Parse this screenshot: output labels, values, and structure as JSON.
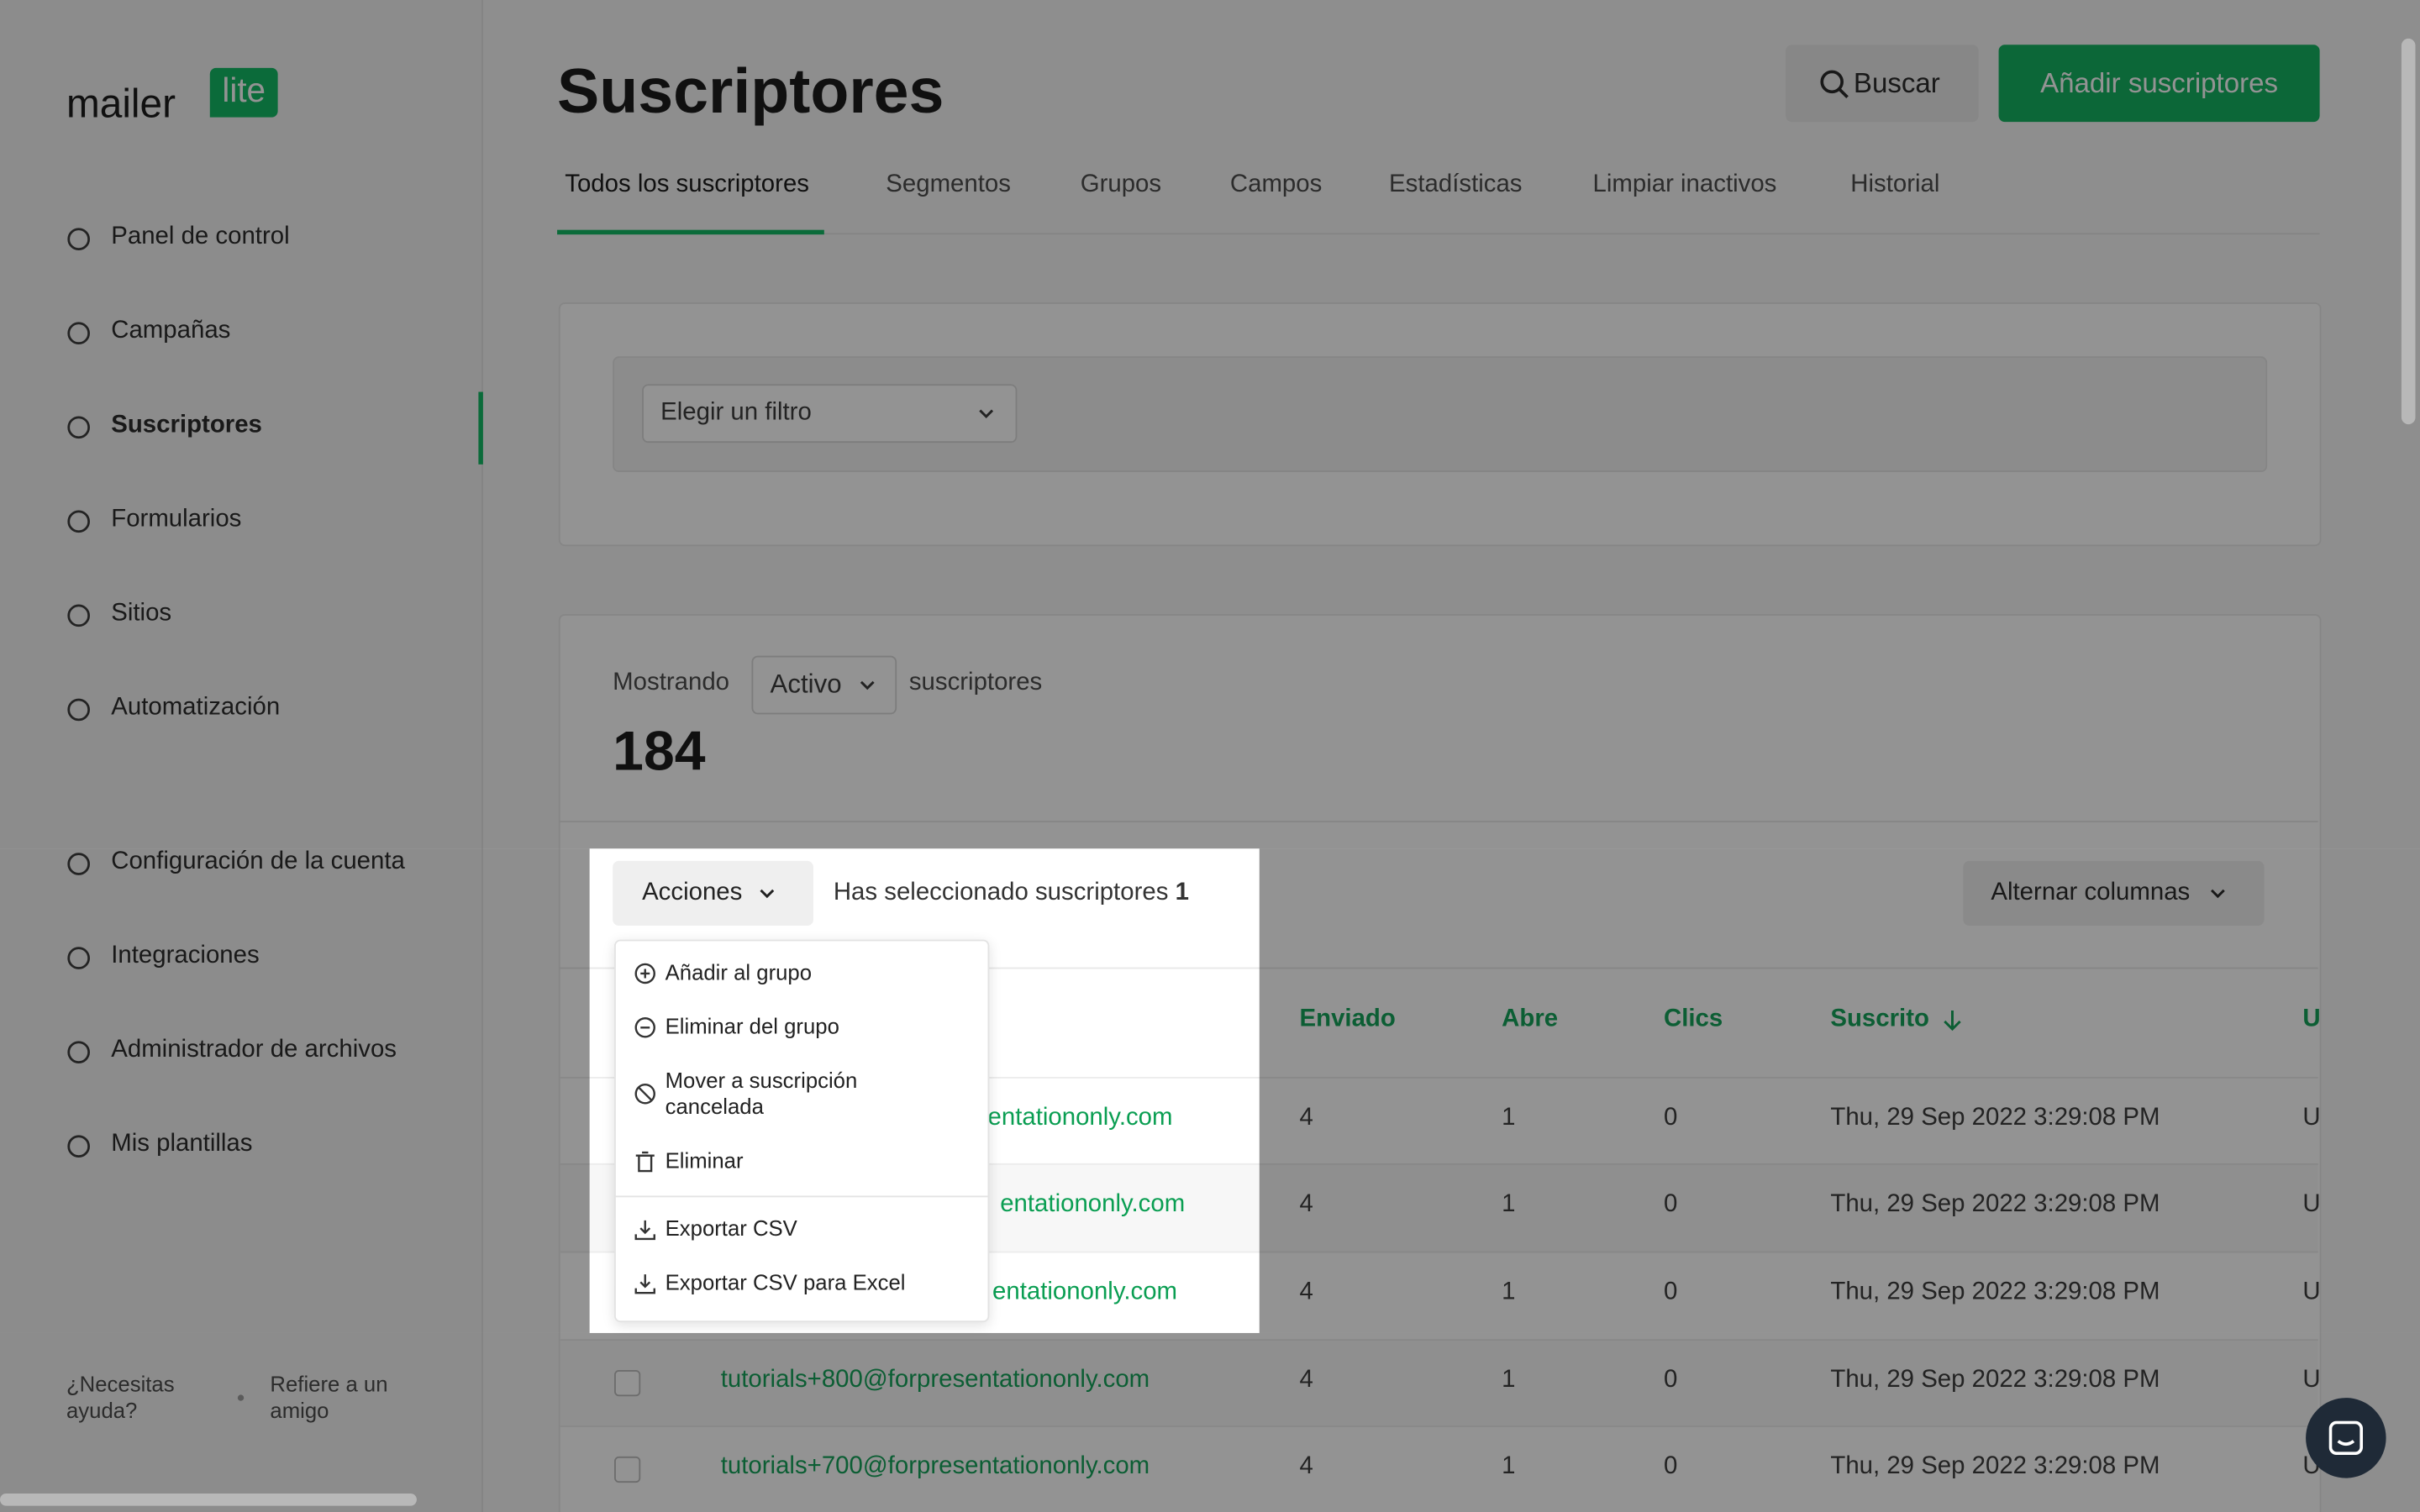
{
  "logo": {
    "word": "mailer",
    "badge": "lite"
  },
  "sidebar": {
    "nav": [
      "Panel de control",
      "Campañas",
      "Suscriptores",
      "Formularios",
      "Sitios",
      "Automatización"
    ],
    "settings": [
      "Configuración de la cuenta",
      "Integraciones",
      "Administrador de archivos",
      "Mis plantillas"
    ],
    "footer": [
      "¿Necesitas ayuda?",
      "Refiere a un amigo"
    ]
  },
  "header": {
    "title": "Suscriptores",
    "search": "Buscar",
    "add": "Añadir suscriptores"
  },
  "tabs": [
    "Todos los suscriptores",
    "Segmentos",
    "Grupos",
    "Campos",
    "Estadísticas",
    "Limpiar inactivos",
    "Historial"
  ],
  "filter": {
    "placeholder": "Elegir un filtro"
  },
  "summary": {
    "prefix": "Mostrando",
    "status": "Activo",
    "suffix": "suscriptores",
    "count": 184
  },
  "toolbar": {
    "actions": "Acciones",
    "selected_text": "Has seleccionado suscriptores",
    "selected_count": 1,
    "columns": "Alternar columnas"
  },
  "actions_menu": [
    "Añadir al grupo",
    "Eliminar del grupo",
    "Mover a suscripción cancelada",
    "Eliminar",
    "Exportar CSV",
    "Exportar CSV para Excel"
  ],
  "table": {
    "columns": [
      "Enviado",
      "Abre",
      "Clics",
      "Suscrito",
      "U"
    ],
    "rows": [
      [
        "entationonly.com",
        4,
        1,
        0,
        "Thu, 29 Sep 2022 3:29:08 PM",
        "U"
      ],
      [
        "entationonly.com",
        4,
        1,
        0,
        "Thu, 29 Sep 2022 3:29:08 PM",
        "U"
      ],
      [
        "entationonly.com",
        4,
        1,
        0,
        "Thu, 29 Sep 2022 3:29:08 PM",
        "U"
      ],
      [
        "tutorials+800@forpresentationonly.com",
        4,
        1,
        0,
        "Thu, 29 Sep 2022 3:29:08 PM",
        "U"
      ],
      [
        "tutorials+700@forpresentationonly.com",
        4,
        1,
        0,
        "Thu, 29 Sep 2022 3:29:08 PM",
        "U"
      ]
    ]
  }
}
